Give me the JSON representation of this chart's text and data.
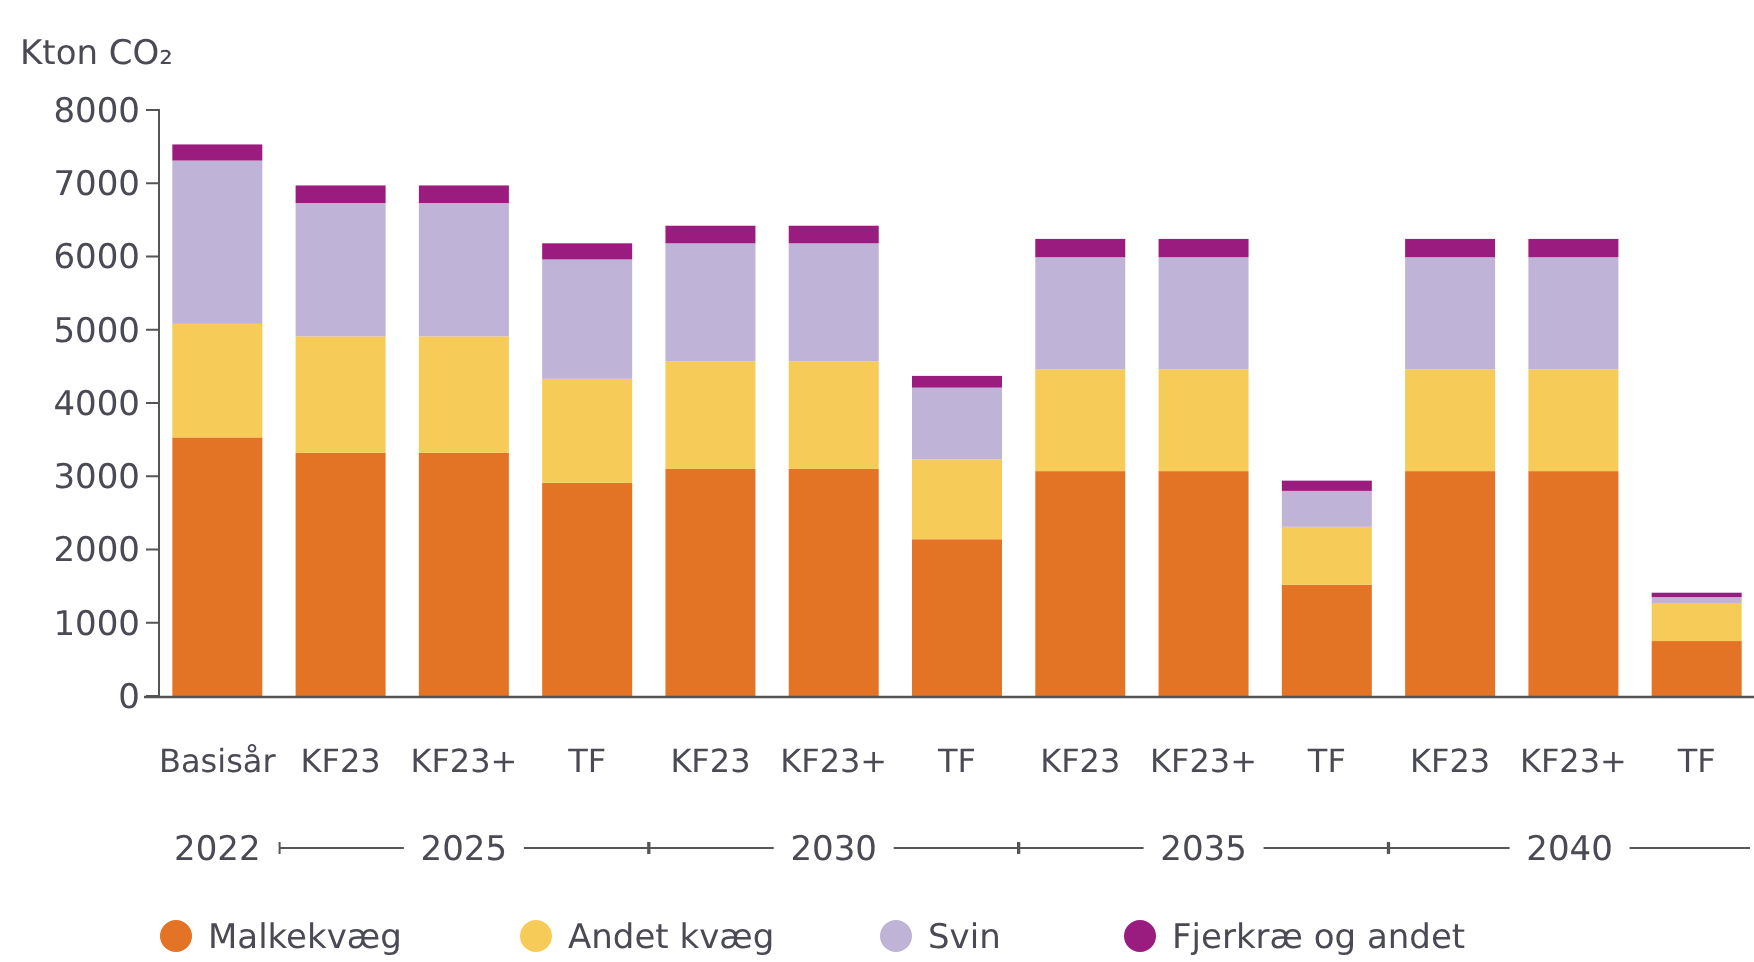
{
  "chart_data": {
    "type": "bar",
    "stacked": true,
    "ylabel": "Kton CO₂",
    "categories": [
      "Basisår",
      "KF23",
      "KF23+",
      "TF",
      "KF23",
      "KF23+",
      "TF",
      "KF23",
      "KF23+",
      "TF",
      "KF23",
      "KF23+",
      "TF"
    ],
    "series": [
      {
        "name": "Malkekvæg",
        "color": "#e37325",
        "values": [
          3530,
          3320,
          3320,
          2910,
          3100,
          3100,
          2140,
          3070,
          3070,
          1520,
          3070,
          3070,
          750
        ]
      },
      {
        "name": "Andet kvæg",
        "color": "#f7cb58",
        "values": [
          1550,
          1590,
          1590,
          1420,
          1470,
          1470,
          1090,
          1390,
          1390,
          790,
          1390,
          1390,
          520
        ]
      },
      {
        "name": "Svin",
        "color": "#bfb4d7",
        "values": [
          2230,
          1820,
          1820,
          1630,
          1610,
          1610,
          980,
          1530,
          1530,
          490,
          1530,
          1530,
          80
        ]
      },
      {
        "name": "Fjerkræ og andet",
        "color": "#9a1c7e",
        "values": [
          220,
          240,
          240,
          220,
          240,
          240,
          160,
          250,
          250,
          140,
          250,
          250,
          60
        ]
      }
    ],
    "ylim": [
      0,
      8000
    ],
    "yticks": [
      0,
      1000,
      2000,
      3000,
      4000,
      5000,
      6000,
      7000,
      8000
    ],
    "annotations": [
      "2022",
      "2025",
      "2030",
      "2035",
      "2040"
    ],
    "legend": "bottom"
  }
}
